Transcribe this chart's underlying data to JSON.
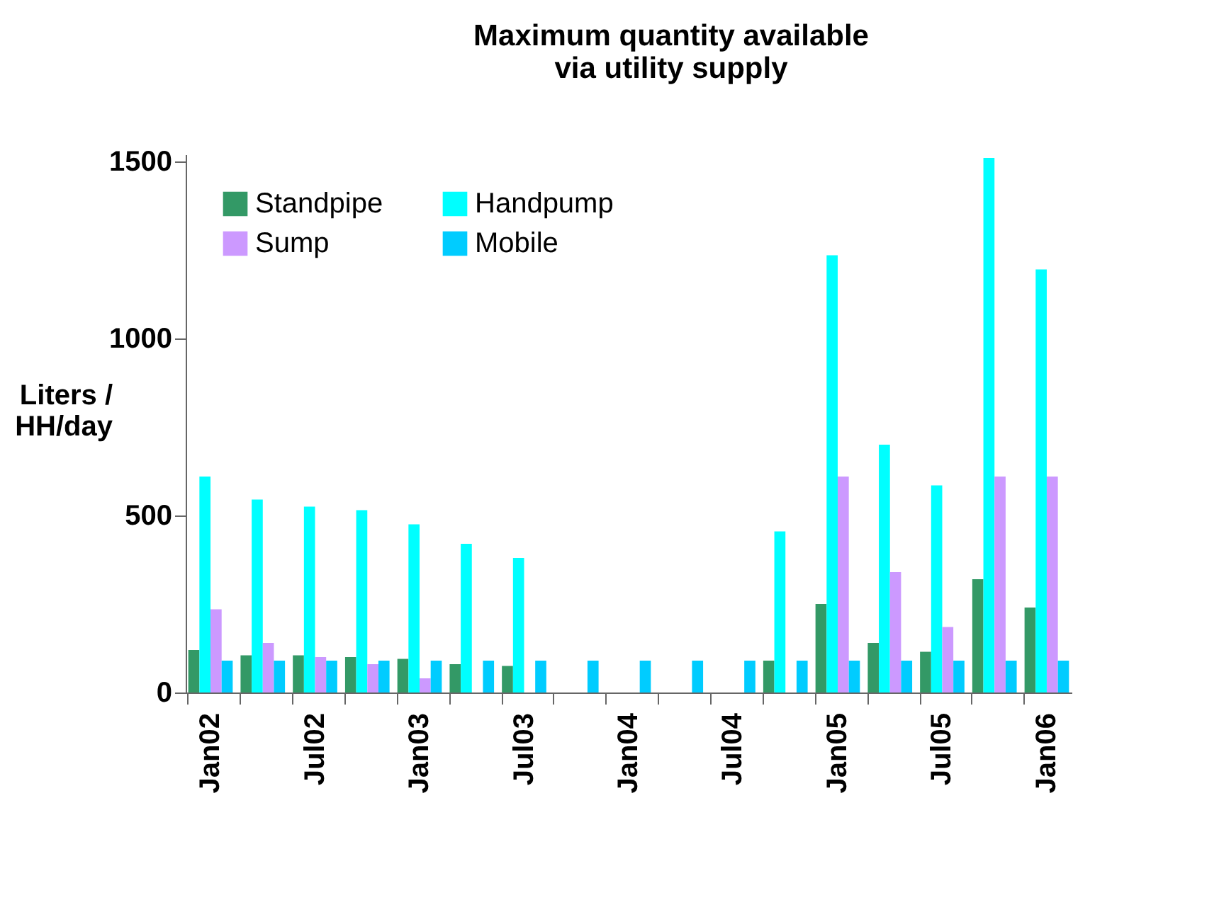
{
  "chart_data": {
    "type": "bar",
    "title": "Maximum quantity available\nvia utility supply",
    "ylabel": "Liters /\nHH/day",
    "categories": [
      "Jan02",
      null,
      "Jul02",
      null,
      "Jan03",
      null,
      "Jul03",
      null,
      "Jan04",
      null,
      "Jul04",
      null,
      "Jan05",
      null,
      "Jul05",
      null,
      "Jan06"
    ],
    "series": [
      {
        "name": "Standpipe",
        "color": "#339966",
        "values": [
          120,
          105,
          105,
          100,
          95,
          80,
          75,
          null,
          null,
          null,
          null,
          90,
          250,
          140,
          115,
          320,
          240
        ]
      },
      {
        "name": "Handpump",
        "color": "#00ffff",
        "values": [
          610,
          545,
          525,
          515,
          475,
          420,
          380,
          null,
          null,
          null,
          null,
          455,
          1235,
          700,
          585,
          1510,
          1195
        ]
      },
      {
        "name": "Sump",
        "color": "#cc99ff",
        "values": [
          235,
          140,
          100,
          80,
          40,
          null,
          null,
          null,
          null,
          null,
          null,
          null,
          610,
          340,
          185,
          610,
          610
        ]
      },
      {
        "name": "Mobile",
        "color": "#00ccff",
        "values": [
          90,
          90,
          90,
          90,
          90,
          90,
          90,
          90,
          90,
          90,
          90,
          90,
          90,
          90,
          90,
          90,
          90
        ]
      }
    ],
    "ylim": [
      0,
      1520
    ],
    "yticks": [
      0,
      500,
      1000,
      1500
    ],
    "grid": false,
    "legend": "top left"
  }
}
